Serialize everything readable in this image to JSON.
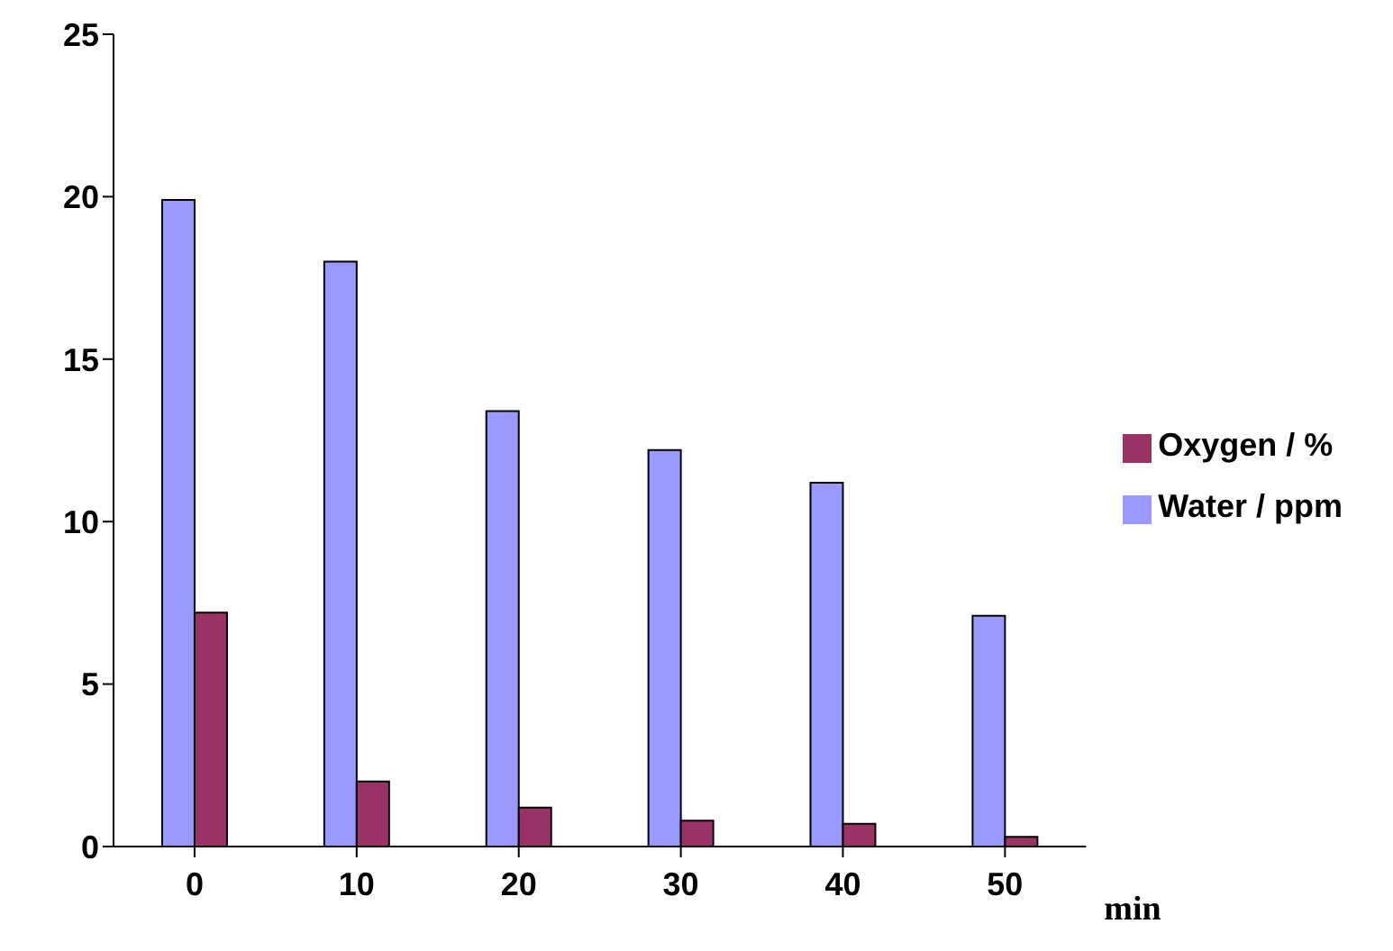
{
  "chart_data": {
    "type": "bar",
    "xlabel": "min",
    "categories": [
      "0",
      "10",
      "20",
      "30",
      "40",
      "50"
    ],
    "series": [
      {
        "name": "Water / ppm",
        "color": "#9999ff",
        "values": [
          19.9,
          18,
          13.4,
          12.2,
          11.2,
          7.1
        ]
      },
      {
        "name": "Oxygen / %",
        "color": "#993366",
        "values": [
          7.2,
          2,
          1.2,
          0.8,
          0.7,
          0.3
        ]
      }
    ],
    "ylim": [
      0,
      25
    ],
    "yticks": [
      0,
      5,
      10,
      15,
      20,
      25
    ],
    "grid": false,
    "legend": "right"
  }
}
